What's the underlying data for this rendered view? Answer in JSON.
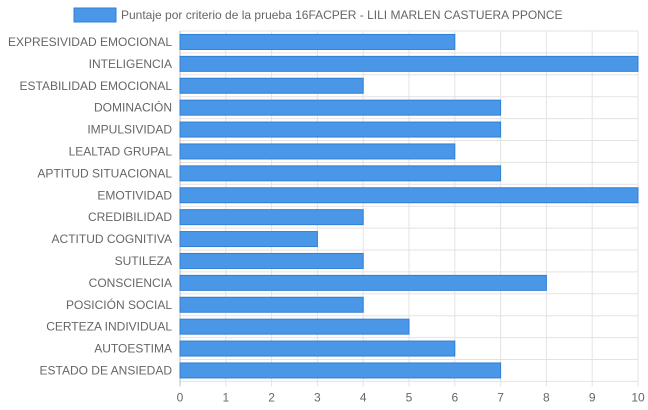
{
  "chart_data": {
    "type": "bar",
    "orientation": "horizontal",
    "categories": [
      "EXPRESIVIDAD EMOCIONAL",
      "INTELIGENCIA",
      "ESTABILIDAD EMOCIONAL",
      "DOMINACIÓN",
      "IMPULSIVIDAD",
      "LEALTAD GRUPAL",
      "APTITUD SITUACIONAL",
      "EMOTIVIDAD",
      "CREDIBILIDAD",
      "ACTITUD COGNITIVA",
      "SUTILEZA",
      "CONSCIENCIA",
      "POSICIÓN SOCIAL",
      "CERTEZA INDIVIDUAL",
      "AUTOESTIMA",
      "ESTADO DE ANSIEDAD"
    ],
    "series": [
      {
        "name": "Puntaje por criterio de la prueba 16FACPER - LILI MARLEN CASTUERA PPONCE",
        "values": [
          6,
          10,
          4,
          7,
          7,
          6,
          7,
          10,
          4,
          3,
          4,
          8,
          4,
          5,
          6,
          7
        ]
      }
    ],
    "xlim": [
      0,
      10
    ],
    "xticks": [
      "0",
      "1",
      "2",
      "3",
      "4",
      "5",
      "6",
      "7",
      "8",
      "9",
      "10"
    ],
    "grid": true,
    "legend_position": "top",
    "colors": {
      "bar_fill": "#4a97e8",
      "bar_stroke": "#2f7fd6",
      "grid": "#e3e3e3",
      "axis": "#bdbdbd",
      "text": "#666666"
    }
  }
}
